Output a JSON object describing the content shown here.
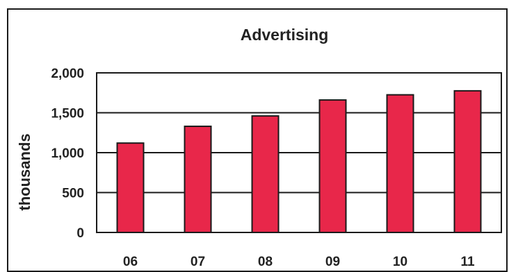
{
  "chart_data": {
    "type": "bar",
    "title": "Advertising",
    "xlabel": "",
    "ylabel": "thousands",
    "categories": [
      "06",
      "07",
      "08",
      "09",
      "10",
      "11"
    ],
    "values": [
      1120,
      1330,
      1460,
      1660,
      1725,
      1775
    ],
    "ylim": [
      0,
      2000
    ],
    "yticks": [
      0,
      500,
      1000,
      1500,
      2000
    ],
    "ytick_labels": [
      "0",
      "500",
      "1,000",
      "1,500",
      "2,000"
    ],
    "grid": true,
    "legend": "none",
    "colors": {
      "bar_fill": "#e8274a",
      "bar_stroke": "#1a1a1a",
      "grid": "#1a1a1a",
      "text": "#222222"
    }
  }
}
